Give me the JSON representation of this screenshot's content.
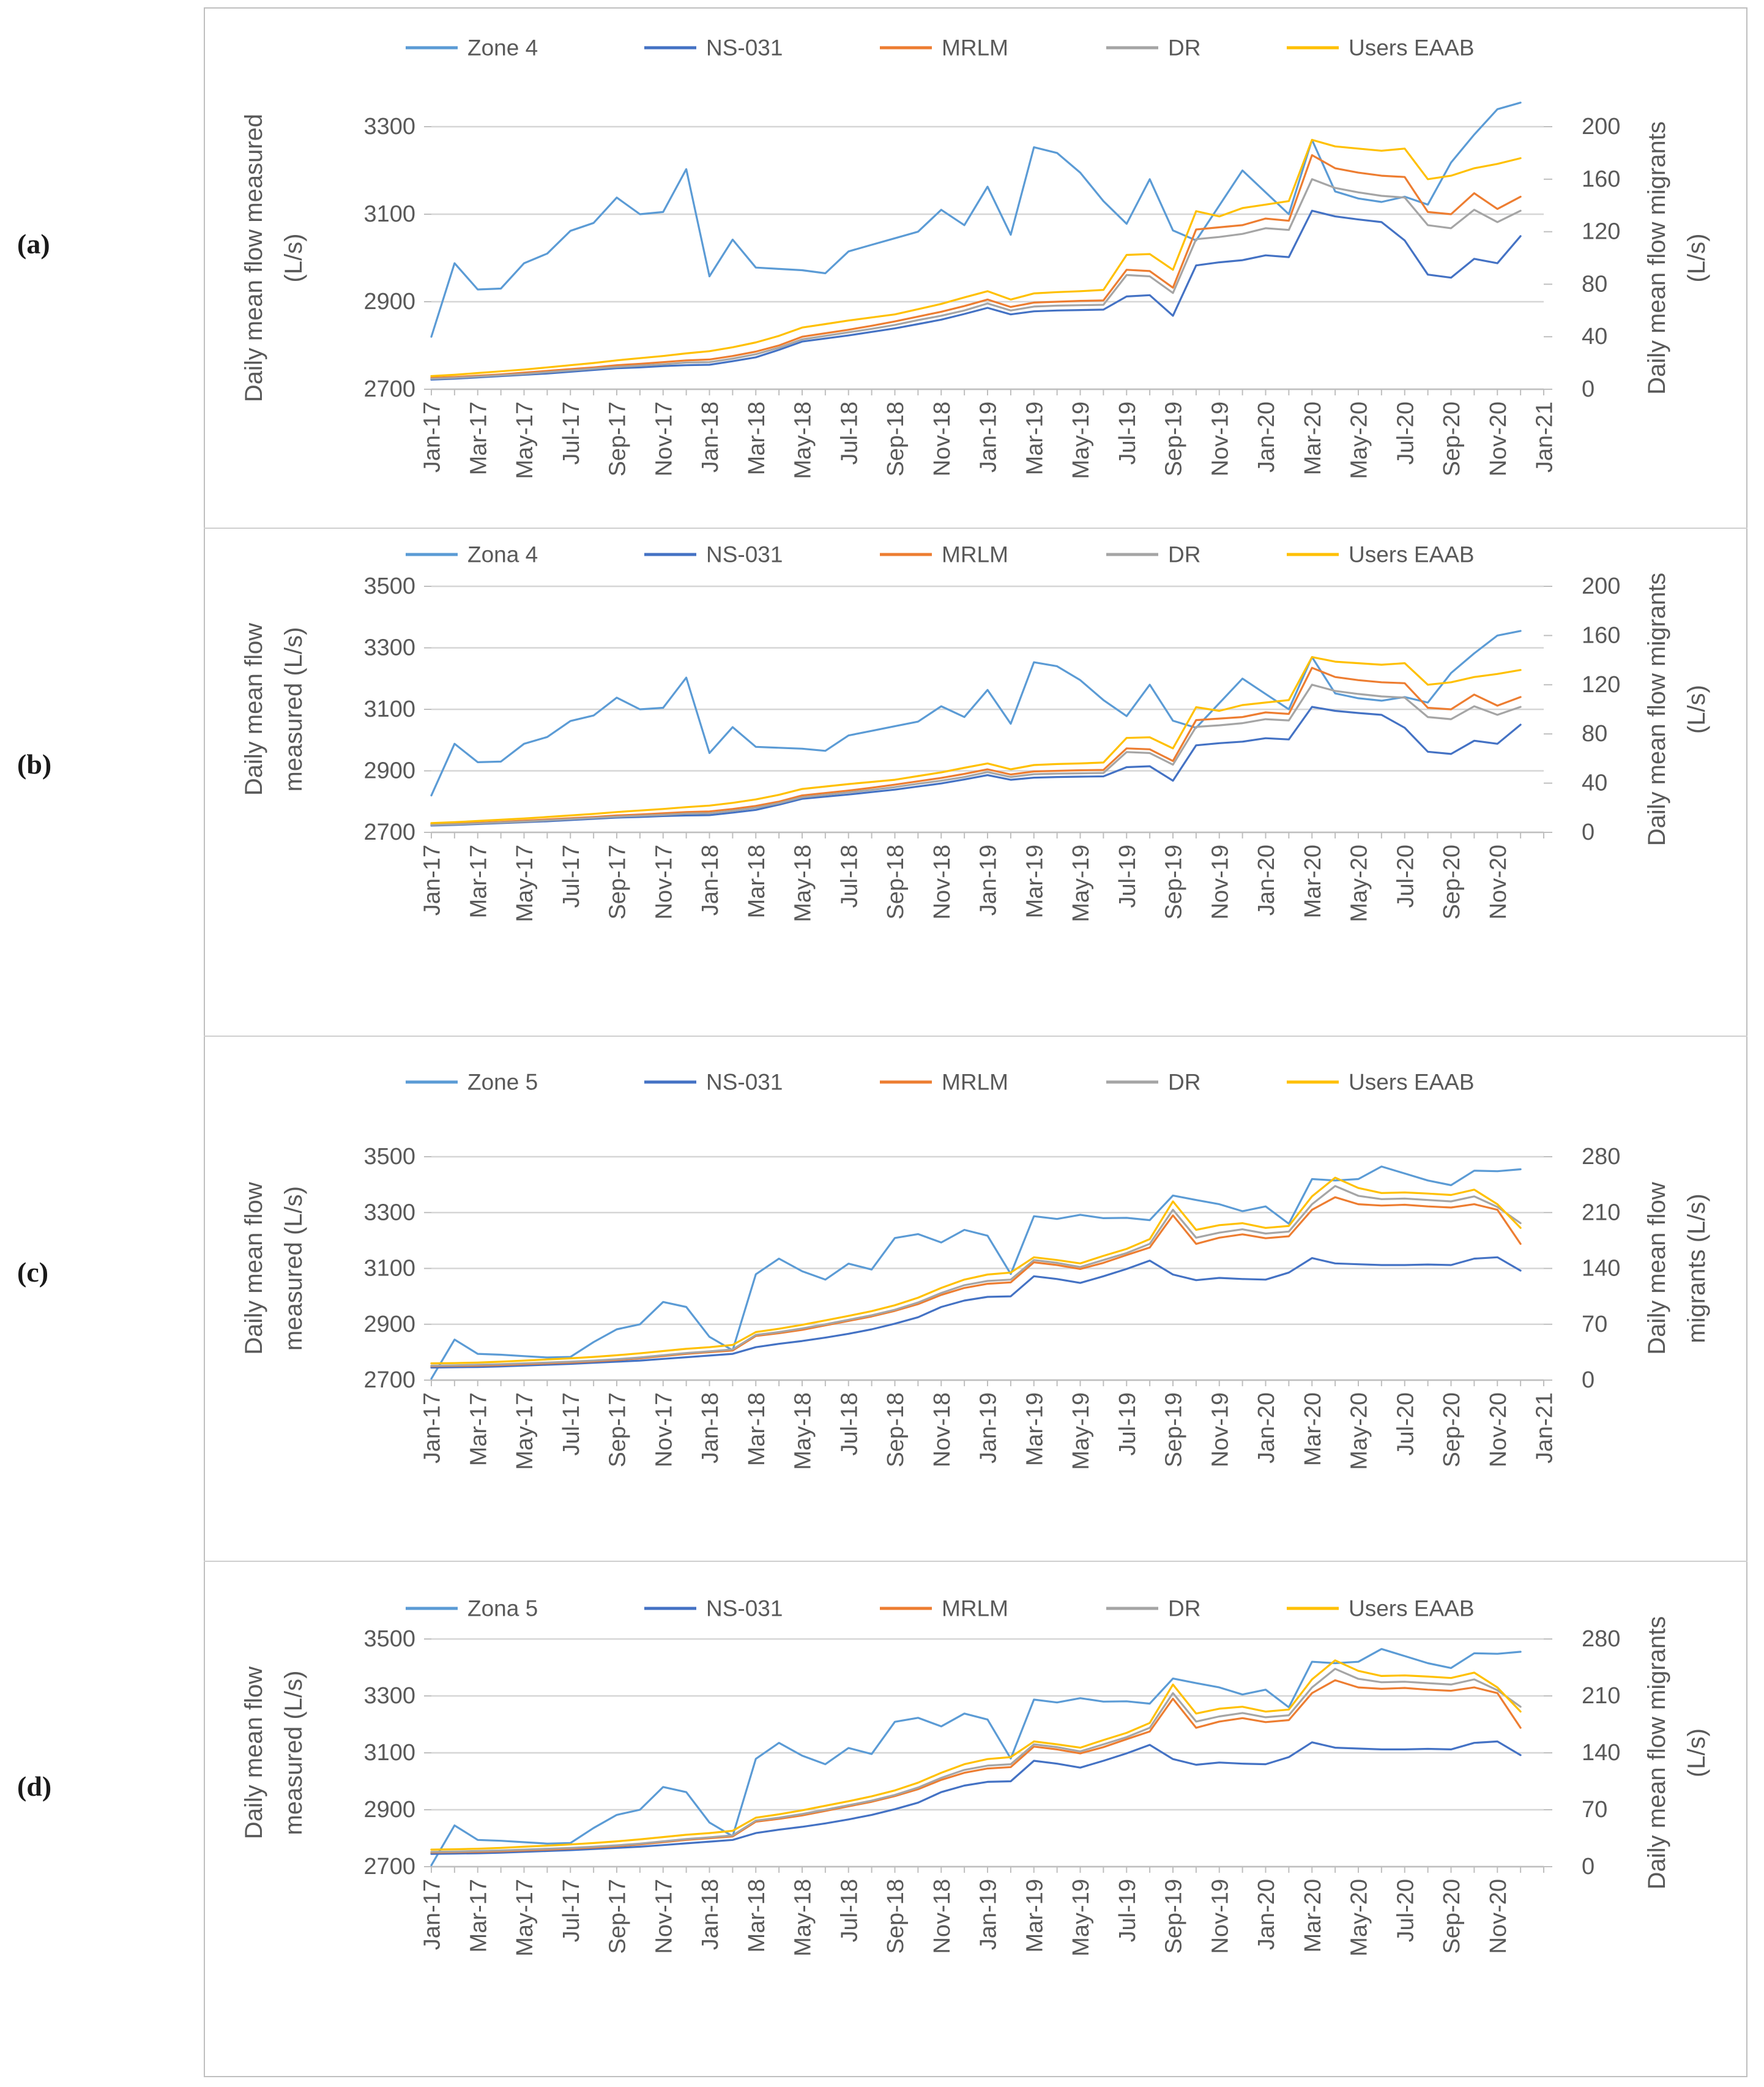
{
  "figure": {
    "description": "Four stacked dual-axis line charts comparing measured daily mean flow with migrant daily mean flow estimates",
    "panel_letters": [
      "(a)",
      "(b)",
      "(c)",
      "(d)"
    ]
  },
  "colors": {
    "zone": "#5B9BD5",
    "ns031": "#4472C4",
    "mrlm": "#ED7D31",
    "dr": "#A5A5A5",
    "eaab": "#FFC000",
    "gridline": "#D6D6D6",
    "axis": "#BFBFBF",
    "text": "#595959"
  },
  "chart_data": {
    "type": "line",
    "months_all": [
      "Jan-17",
      "Feb-17",
      "Mar-17",
      "Apr-17",
      "May-17",
      "Jun-17",
      "Jul-17",
      "Aug-17",
      "Sep-17",
      "Oct-17",
      "Nov-17",
      "Dec-17",
      "Jan-18",
      "Feb-18",
      "Mar-18",
      "Apr-18",
      "May-18",
      "Jun-18",
      "Jul-18",
      "Aug-18",
      "Sep-18",
      "Oct-18",
      "Nov-18",
      "Dec-18",
      "Jan-19",
      "Feb-19",
      "Mar-19",
      "Apr-19",
      "May-19",
      "Jun-19",
      "Jul-19",
      "Aug-19",
      "Sep-19",
      "Oct-19",
      "Nov-19",
      "Dec-19",
      "Jan-20",
      "Feb-20",
      "Mar-20",
      "Apr-20",
      "May-20",
      "Jun-20",
      "Jul-20",
      "Aug-20",
      "Sep-20",
      "Oct-20",
      "Nov-20",
      "Dec-20"
    ],
    "datasets": {
      "zone4_group": {
        "series_keys": [
          "zone",
          "ns031",
          "mrlm",
          "dr",
          "eaab"
        ],
        "zone": [
          2820,
          2988,
          2928,
          2930,
          2988,
          3010,
          3062,
          3080,
          3138,
          3100,
          3105,
          3203,
          2958,
          3042,
          2978,
          2975,
          2972,
          2965,
          3015,
          3030,
          3045,
          3060,
          3110,
          3075,
          3163,
          3053,
          3253,
          3240,
          3195,
          3130,
          3078,
          3180,
          3063,
          3040,
          3120,
          3200,
          3150,
          3100,
          3270,
          3152,
          3136,
          3128,
          3140,
          3122,
          3218,
          3282,
          3340,
          3355
        ],
        "ns031": [
          2722,
          2724,
          2727,
          2730,
          2733,
          2736,
          2740,
          2744,
          2748,
          2750,
          2753,
          2755,
          2756,
          2764,
          2773,
          2790,
          2809,
          2816,
          2823,
          2831,
          2839,
          2849,
          2859,
          2872,
          2886,
          2871,
          2878,
          2880,
          2881,
          2882,
          2912,
          2915,
          2868,
          2983,
          2990,
          2995,
          3006,
          3002,
          3108,
          3095,
          3088,
          3082,
          3040,
          2962,
          2955,
          2998,
          2988,
          3050
        ],
        "mrlm": [
          2726,
          2728,
          2731,
          2734,
          2738,
          2742,
          2746,
          2750,
          2755,
          2758,
          2762,
          2766,
          2768,
          2776,
          2786,
          2800,
          2820,
          2828,
          2836,
          2845,
          2855,
          2866,
          2877,
          2890,
          2905,
          2888,
          2898,
          2900,
          2902,
          2903,
          2973,
          2970,
          2932,
          3065,
          3070,
          3075,
          3090,
          3085,
          3235,
          3205,
          3195,
          3188,
          3185,
          3105,
          3100,
          3148,
          3112,
          3140
        ],
        "dr": [
          2724,
          2726,
          2729,
          2732,
          2735,
          2739,
          2743,
          2747,
          2751,
          2754,
          2757,
          2761,
          2762,
          2770,
          2780,
          2795,
          2814,
          2822,
          2830,
          2838,
          2847,
          2858,
          2868,
          2880,
          2896,
          2880,
          2889,
          2891,
          2892,
          2893,
          2961,
          2958,
          2920,
          3043,
          3048,
          3055,
          3068,
          3064,
          3180,
          3160,
          3150,
          3142,
          3138,
          3075,
          3068,
          3110,
          3082,
          3108
        ],
        "eaab": [
          2730,
          2733,
          2737,
          2741,
          2745,
          2750,
          2755,
          2760,
          2766,
          2771,
          2776,
          2782,
          2787,
          2796,
          2807,
          2822,
          2841,
          2849,
          2857,
          2864,
          2871,
          2883,
          2895,
          2910,
          2924,
          2905,
          2919,
          2922,
          2924,
          2927,
          3007,
          3009,
          2973,
          3107,
          3095,
          3114,
          3122,
          3130,
          3270,
          3255,
          3250,
          3245,
          3250,
          3180,
          3188,
          3205,
          3215,
          3228
        ]
      },
      "zone5_group": {
        "series_keys": [
          "zone",
          "ns031",
          "mrlm",
          "dr",
          "eaab"
        ],
        "zone": [
          2705,
          2845,
          2794,
          2791,
          2786,
          2781,
          2783,
          2836,
          2882,
          2900,
          2980,
          2962,
          2855,
          2807,
          3079,
          3135,
          3090,
          3060,
          3117,
          3096,
          3209,
          3223,
          3193,
          3238,
          3217,
          3080,
          3287,
          3277,
          3292,
          3280,
          3281,
          3273,
          3361,
          3345,
          3330,
          3305,
          3322,
          3260,
          3420,
          3415,
          3420,
          3465,
          3440,
          3415,
          3398,
          3450,
          3448,
          3455
        ],
        "ns031": [
          2745,
          2746,
          2747,
          2749,
          2752,
          2755,
          2758,
          2762,
          2766,
          2770,
          2776,
          2782,
          2788,
          2794,
          2818,
          2830,
          2840,
          2852,
          2866,
          2882,
          2902,
          2925,
          2962,
          2985,
          2998,
          3000,
          3072,
          3062,
          3048,
          3072,
          3098,
          3128,
          3078,
          3058,
          3066,
          3062,
          3060,
          3085,
          3137,
          3118,
          3115,
          3112,
          3112,
          3114,
          3112,
          3135,
          3140,
          3092
        ],
        "mrlm": [
          2750,
          2751,
          2752,
          2754,
          2757,
          2760,
          2763,
          2767,
          2772,
          2778,
          2786,
          2794,
          2800,
          2806,
          2858,
          2868,
          2880,
          2896,
          2912,
          2928,
          2948,
          2972,
          3005,
          3030,
          3045,
          3050,
          3122,
          3112,
          3098,
          3120,
          3148,
          3175,
          3290,
          3188,
          3210,
          3222,
          3208,
          3215,
          3310,
          3355,
          3330,
          3325,
          3328,
          3322,
          3318,
          3330,
          3310,
          3188
        ],
        "dr": [
          2752,
          2753,
          2755,
          2757,
          2760,
          2763,
          2766,
          2770,
          2775,
          2781,
          2789,
          2797,
          2803,
          2810,
          2862,
          2872,
          2885,
          2900,
          2916,
          2932,
          2952,
          2978,
          3012,
          3040,
          3055,
          3060,
          3130,
          3120,
          3105,
          3130,
          3155,
          3188,
          3310,
          3210,
          3228,
          3240,
          3225,
          3232,
          3330,
          3395,
          3360,
          3348,
          3350,
          3345,
          3340,
          3358,
          3320,
          3262
        ],
        "eaab": [
          2760,
          2761,
          2763,
          2766,
          2770,
          2774,
          2778,
          2783,
          2789,
          2796,
          2804,
          2812,
          2818,
          2826,
          2872,
          2884,
          2898,
          2914,
          2930,
          2947,
          2968,
          2995,
          3030,
          3060,
          3078,
          3085,
          3140,
          3130,
          3118,
          3145,
          3170,
          3205,
          3340,
          3238,
          3255,
          3262,
          3245,
          3252,
          3358,
          3425,
          3388,
          3370,
          3372,
          3368,
          3363,
          3382,
          3330,
          3245
        ]
      }
    },
    "charts": [
      {
        "id": "a",
        "panel_label": "(a)",
        "dataset": "zone4_group",
        "legend": [
          "Zone 4",
          "NS-031",
          "MRLM",
          "DR",
          "Users EAAB"
        ],
        "left_axis": {
          "title_lines": [
            "Daily mean flow measured",
            "(L/s)"
          ],
          "min": 2700,
          "max": 3300,
          "ticks": [
            2700,
            2900,
            3100,
            3300
          ]
        },
        "right_axis": {
          "title_lines": [
            "Daily mean flow migrants",
            "(L/s)"
          ],
          "min": 0,
          "max": 200,
          "ticks": [
            0,
            40,
            80,
            120,
            160,
            200
          ]
        },
        "x_labels": [
          "Jan-17",
          "Mar-17",
          "May-17",
          "Jul-17",
          "Sep-17",
          "Nov-17",
          "Jan-18",
          "Mar-18",
          "May-18",
          "Jul-18",
          "Sep-18",
          "Nov-18",
          "Jan-19",
          "Mar-19",
          "May-19",
          "Jul-19",
          "Sep-19",
          "Nov-19",
          "Jan-20",
          "Mar-20",
          "May-20",
          "Jul-20",
          "Sep-20",
          "Nov-20",
          "Jan-21"
        ]
      },
      {
        "id": "b",
        "panel_label": "(b)",
        "dataset": "zone4_group",
        "legend": [
          "Zona 4",
          "NS-031",
          "MRLM",
          "DR",
          "Users EAAB"
        ],
        "left_axis": {
          "title_lines": [
            "Daily mean flow",
            "measured (L/s)"
          ],
          "min": 2700,
          "max": 3500,
          "ticks": [
            2700,
            2900,
            3100,
            3300,
            3500
          ]
        },
        "right_axis": {
          "title_lines": [
            "Daily mean flow migrants",
            "(L/s)"
          ],
          "min": 0,
          "max": 200,
          "ticks": [
            0,
            40,
            80,
            120,
            160,
            200
          ]
        },
        "x_labels": [
          "Jan-17",
          "Mar-17",
          "May-17",
          "Jul-17",
          "Sep-17",
          "Nov-17",
          "Jan-18",
          "Mar-18",
          "May-18",
          "Jul-18",
          "Sep-18",
          "Nov-18",
          "Jan-19",
          "Mar-19",
          "May-19",
          "Jul-19",
          "Sep-19",
          "Nov-19",
          "Jan-20",
          "Mar-20",
          "May-20",
          "Jul-20",
          "Sep-20",
          "Nov-20"
        ]
      },
      {
        "id": "c",
        "panel_label": "(c)",
        "dataset": "zone5_group",
        "legend": [
          "Zone 5",
          "NS-031",
          "MRLM",
          "DR",
          "Users EAAB"
        ],
        "left_axis": {
          "title_lines": [
            "Daily mean flow",
            "measured (L/s)"
          ],
          "min": 2700,
          "max": 3500,
          "ticks": [
            2700,
            2900,
            3100,
            3300,
            3500
          ]
        },
        "right_axis": {
          "title_lines": [
            "Daily mean flow",
            "migrants (L/s)"
          ],
          "min": 0,
          "max": 280,
          "ticks": [
            0,
            70,
            140,
            210,
            280
          ]
        },
        "x_labels": [
          "Jan-17",
          "Mar-17",
          "May-17",
          "Jul-17",
          "Sep-17",
          "Nov-17",
          "Jan-18",
          "Mar-18",
          "May-18",
          "Jul-18",
          "Sep-18",
          "Nov-18",
          "Jan-19",
          "Mar-19",
          "May-19",
          "Jul-19",
          "Sep-19",
          "Nov-19",
          "Jan-20",
          "Mar-20",
          "May-20",
          "Jul-20",
          "Sep-20",
          "Nov-20",
          "Jan-21"
        ]
      },
      {
        "id": "d",
        "panel_label": "(d)",
        "dataset": "zone5_group",
        "legend": [
          "Zona 5",
          "NS-031",
          "MRLM",
          "DR",
          "Users EAAB"
        ],
        "left_axis": {
          "title_lines": [
            "Daily mean flow",
            "measured (L/s)"
          ],
          "min": 2700,
          "max": 3500,
          "ticks": [
            2700,
            2900,
            3100,
            3300,
            3500
          ]
        },
        "right_axis": {
          "title_lines": [
            "Daily mean flow migrants",
            "(L/s)"
          ],
          "min": 0,
          "max": 280,
          "ticks": [
            0,
            70,
            140,
            210,
            280
          ]
        },
        "x_labels": [
          "Jan-17",
          "Mar-17",
          "May-17",
          "Jul-17",
          "Sep-17",
          "Nov-17",
          "Jan-18",
          "Mar-18",
          "May-18",
          "Jul-18",
          "Sep-18",
          "Nov-18",
          "Jan-19",
          "Mar-19",
          "May-19",
          "Jul-19",
          "Sep-19",
          "Nov-19",
          "Jan-20",
          "Mar-20",
          "May-20",
          "Jul-20",
          "Sep-20",
          "Nov-20"
        ]
      }
    ]
  }
}
